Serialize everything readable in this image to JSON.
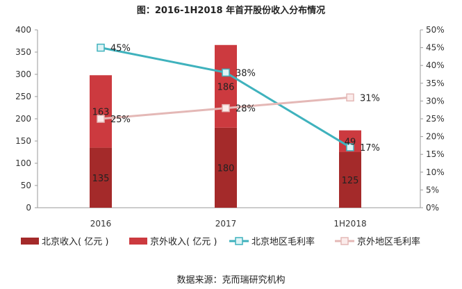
{
  "title": "图：2016-1H2018 年首开股份收入分布情况",
  "source": "数据来源：克而瑞研究机构",
  "chart_data": {
    "type": "bar",
    "categories": [
      "2016",
      "2017",
      "1H2018"
    ],
    "series": [
      {
        "name": "北京收入( 亿元 )",
        "kind": "bar",
        "axis": "left",
        "color": "#a42a2a",
        "values": [
          135,
          180,
          125
        ]
      },
      {
        "name": "京外收入( 亿元 )",
        "kind": "bar",
        "axis": "left",
        "color": "#cc3a3f",
        "values": [
          163,
          186,
          49
        ]
      },
      {
        "name": "北京地区毛利率",
        "kind": "line",
        "axis": "right",
        "color": "#3fb2bd",
        "marker_fill": "#dff3f5",
        "values": [
          45,
          38,
          17
        ]
      },
      {
        "name": "京外地区毛利率",
        "kind": "line",
        "axis": "right",
        "color": "#e4b8b6",
        "marker_fill": "#fbeceb",
        "values": [
          25,
          28,
          31
        ]
      }
    ],
    "stacked": true,
    "left_axis": {
      "ylim": [
        0,
        400
      ],
      "ticks": [
        "0",
        "50",
        "100",
        "150",
        "200",
        "250",
        "300",
        "350",
        "400"
      ]
    },
    "right_axis": {
      "ylim": [
        0,
        50
      ],
      "ticks": [
        "0%",
        "5%",
        "10%",
        "15%",
        "20%",
        "25%",
        "30%",
        "35%",
        "40%",
        "45%",
        "50%"
      ]
    },
    "bar_labels": {
      "北京收入( 亿元 )": [
        "135",
        "180",
        "125"
      ],
      "京外收入( 亿元 )": [
        "163",
        "186",
        "49"
      ]
    },
    "line_labels": {
      "北京地区毛利率": [
        "45%",
        "38%",
        "17%"
      ],
      "京外地区毛利率": [
        "25%",
        "28%",
        "31%"
      ]
    },
    "grid": false,
    "legend_position": "bottom"
  }
}
